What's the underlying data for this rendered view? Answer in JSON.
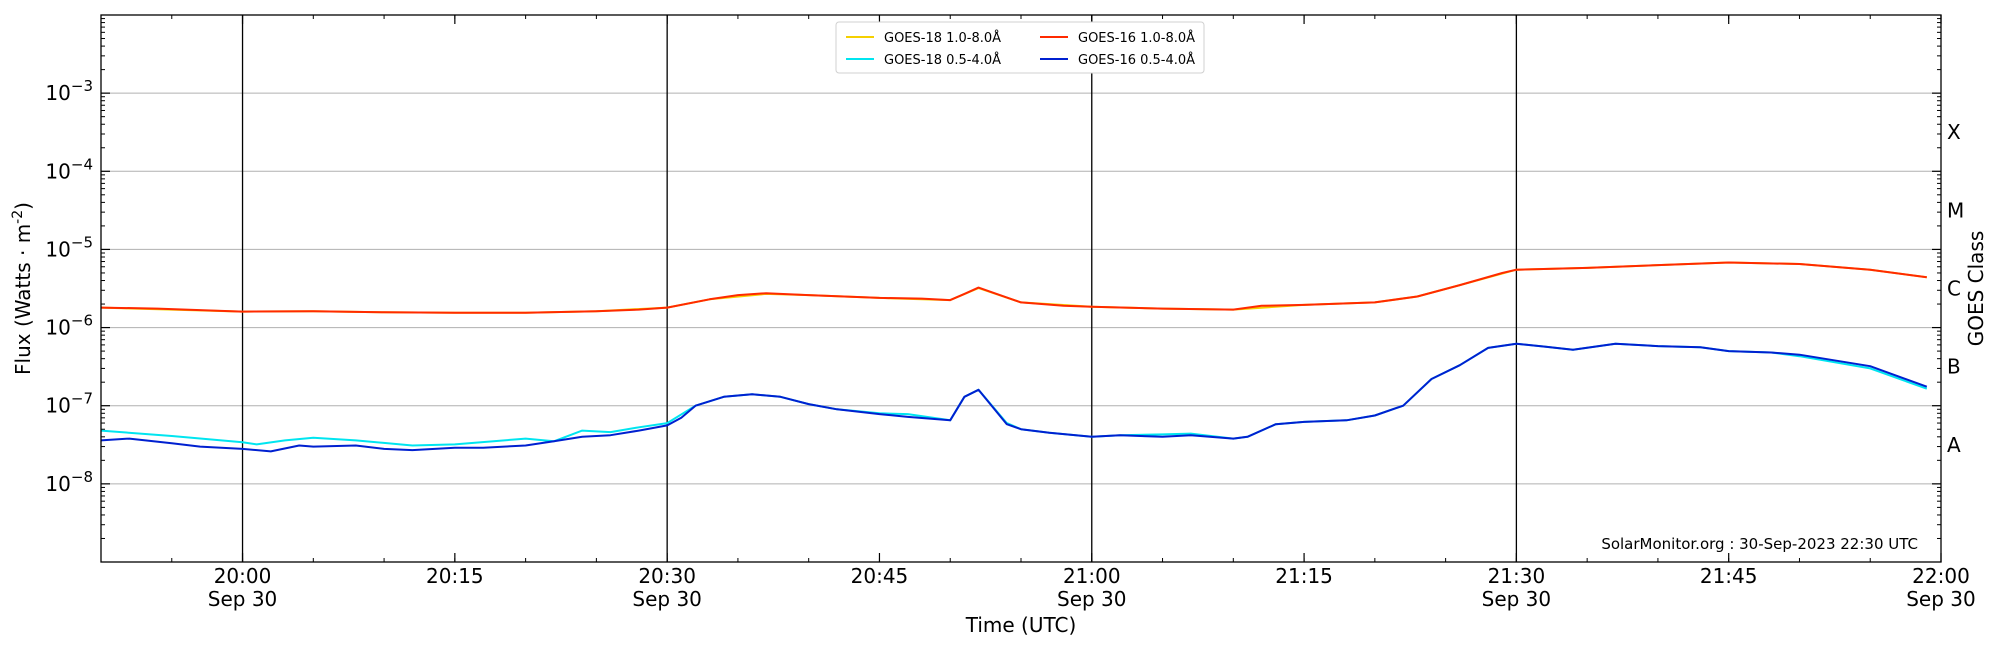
{
  "chart_data": {
    "type": "line",
    "xlabel": "Time (UTC)",
    "ylabel": "Flux (Watts · m",
    "ylabel_exp": "-2",
    "ylabel_close": ")",
    "right_label": "GOES Class",
    "credit": "SolarMonitor.org : 30-Sep-2023 22:30 UTC",
    "scale": "log",
    "ylim": [
      1e-09,
      0.01
    ],
    "xlim": [
      "19:50",
      "22:00"
    ],
    "grid": "horizontal at decades; vertical lines at half-hours",
    "legend_placement": "top-center",
    "yticks": [
      {
        "base": "10",
        "exp": "−8",
        "value": 1e-08
      },
      {
        "base": "10",
        "exp": "−7",
        "value": 1e-07
      },
      {
        "base": "10",
        "exp": "−6",
        "value": 1e-06
      },
      {
        "base": "10",
        "exp": "−5",
        "value": 1e-05
      },
      {
        "base": "10",
        "exp": "−4",
        "value": 0.0001
      },
      {
        "base": "10",
        "exp": "−3",
        "value": 0.001
      }
    ],
    "xticks": [
      {
        "time": "20:00",
        "line1": "20:00",
        "line2": "Sep 30"
      },
      {
        "time": "20:15",
        "line1": "20:15",
        "line2": ""
      },
      {
        "time": "20:30",
        "line1": "20:30",
        "line2": "Sep 30"
      },
      {
        "time": "20:45",
        "line1": "20:45",
        "line2": ""
      },
      {
        "time": "21:00",
        "line1": "21:00",
        "line2": "Sep 30"
      },
      {
        "time": "21:15",
        "line1": "21:15",
        "line2": ""
      },
      {
        "time": "21:30",
        "line1": "21:30",
        "line2": "Sep 30"
      },
      {
        "time": "21:45",
        "line1": "21:45",
        "line2": ""
      },
      {
        "time": "22:00",
        "line1": "22:00",
        "line2": "Sep 30"
      }
    ],
    "vertical_lines": [
      "20:00",
      "20:30",
      "21:00",
      "21:30"
    ],
    "goes_classes": [
      {
        "label": "A",
        "value": 3.16e-08
      },
      {
        "label": "B",
        "value": 3.16e-07
      },
      {
        "label": "C",
        "value": 3.16e-06
      },
      {
        "label": "M",
        "value": 3.16e-05
      },
      {
        "label": "X",
        "value": 0.000316
      }
    ],
    "series": [
      {
        "name": "GOES-18 1.0-8.0Å",
        "color": "#f5d000",
        "points": [
          [
            "19:50",
            1.8e-06
          ],
          [
            "20:00",
            1.6e-06
          ],
          [
            "20:05",
            1.62e-06
          ],
          [
            "20:10",
            1.57e-06
          ],
          [
            "20:15",
            1.55e-06
          ],
          [
            "20:20",
            1.55e-06
          ],
          [
            "20:25",
            1.62e-06
          ],
          [
            "20:30",
            1.8e-06
          ],
          [
            "20:33",
            2.3e-06
          ],
          [
            "20:37",
            2.7e-06
          ],
          [
            "20:40",
            2.6e-06
          ],
          [
            "20:45",
            2.4e-06
          ],
          [
            "20:50",
            2.25e-06
          ],
          [
            "20:52",
            3.2e-06
          ],
          [
            "20:55",
            2.1e-06
          ],
          [
            "21:00",
            1.85e-06
          ],
          [
            "21:05",
            1.75e-06
          ],
          [
            "21:10",
            1.7e-06
          ],
          [
            "21:15",
            1.95e-06
          ],
          [
            "21:20",
            2.1e-06
          ],
          [
            "21:23",
            2.5e-06
          ],
          [
            "21:26",
            3.5e-06
          ],
          [
            "21:30",
            5.5e-06
          ],
          [
            "21:35",
            5.8e-06
          ],
          [
            "21:40",
            6.3e-06
          ],
          [
            "21:45",
            6.8e-06
          ],
          [
            "21:50",
            6.5e-06
          ],
          [
            "21:55",
            5.5e-06
          ],
          [
            "21:59",
            4.4e-06
          ]
        ]
      },
      {
        "name": "GOES-16 1.0-8.0Å",
        "color": "#ff2a00",
        "points": [
          [
            "19:50",
            1.8e-06
          ],
          [
            "19:54",
            1.75e-06
          ],
          [
            "20:00",
            1.6e-06
          ],
          [
            "20:05",
            1.62e-06
          ],
          [
            "20:10",
            1.57e-06
          ],
          [
            "20:15",
            1.55e-06
          ],
          [
            "20:20",
            1.55e-06
          ],
          [
            "20:25",
            1.62e-06
          ],
          [
            "20:28",
            1.7e-06
          ],
          [
            "20:30",
            1.8e-06
          ],
          [
            "20:33",
            2.3e-06
          ],
          [
            "20:35",
            2.6e-06
          ],
          [
            "20:37",
            2.75e-06
          ],
          [
            "20:40",
            2.6e-06
          ],
          [
            "20:45",
            2.4e-06
          ],
          [
            "20:48",
            2.35e-06
          ],
          [
            "20:50",
            2.25e-06
          ],
          [
            "20:51",
            2.7e-06
          ],
          [
            "20:52",
            3.25e-06
          ],
          [
            "20:53",
            2.8e-06
          ],
          [
            "20:55",
            2.1e-06
          ],
          [
            "20:58",
            1.9e-06
          ],
          [
            "21:00",
            1.85e-06
          ],
          [
            "21:05",
            1.75e-06
          ],
          [
            "21:10",
            1.7e-06
          ],
          [
            "21:12",
            1.9e-06
          ],
          [
            "21:15",
            1.95e-06
          ],
          [
            "21:20",
            2.1e-06
          ],
          [
            "21:23",
            2.5e-06
          ],
          [
            "21:26",
            3.5e-06
          ],
          [
            "21:29",
            5e-06
          ],
          [
            "21:30",
            5.5e-06
          ],
          [
            "21:35",
            5.8e-06
          ],
          [
            "21:40",
            6.3e-06
          ],
          [
            "21:45",
            6.8e-06
          ],
          [
            "21:50",
            6.5e-06
          ],
          [
            "21:55",
            5.5e-06
          ],
          [
            "21:59",
            4.4e-06
          ]
        ]
      },
      {
        "name": "GOES-18 0.5-4.0Å",
        "color": "#00e5f0",
        "points": [
          [
            "19:50",
            4.8e-08
          ],
          [
            "19:55",
            4.1e-08
          ],
          [
            "20:00",
            3.4e-08
          ],
          [
            "20:01",
            3.2e-08
          ],
          [
            "20:03",
            3.6e-08
          ],
          [
            "20:05",
            3.9e-08
          ],
          [
            "20:08",
            3.6e-08
          ],
          [
            "20:12",
            3.1e-08
          ],
          [
            "20:15",
            3.2e-08
          ],
          [
            "20:20",
            3.8e-08
          ],
          [
            "20:22",
            3.5e-08
          ],
          [
            "20:24",
            4.8e-08
          ],
          [
            "20:26",
            4.6e-08
          ],
          [
            "20:28",
            5.3e-08
          ],
          [
            "20:30",
            6e-08
          ],
          [
            "20:32",
            1e-07
          ],
          [
            "20:34",
            1.3e-07
          ],
          [
            "20:36",
            1.4e-07
          ],
          [
            "20:38",
            1.3e-07
          ],
          [
            "20:40",
            1.05e-07
          ],
          [
            "20:42",
            9e-08
          ],
          [
            "20:45",
            8e-08
          ],
          [
            "20:47",
            7.8e-08
          ],
          [
            "20:50",
            6.5e-08
          ],
          [
            "20:51",
            1.3e-07
          ],
          [
            "20:52",
            1.6e-07
          ],
          [
            "20:54",
            6e-08
          ],
          [
            "20:55",
            5e-08
          ],
          [
            "20:57",
            4.5e-08
          ],
          [
            "21:00",
            4e-08
          ],
          [
            "21:02",
            4.2e-08
          ],
          [
            "21:05",
            4.3e-08
          ],
          [
            "21:07",
            4.4e-08
          ],
          [
            "21:10",
            3.8e-08
          ],
          [
            "21:11",
            4e-08
          ],
          [
            "21:13",
            5.8e-08
          ],
          [
            "21:15",
            6.2e-08
          ],
          [
            "21:18",
            6.5e-08
          ],
          [
            "21:20",
            7.5e-08
          ],
          [
            "21:22",
            1e-07
          ],
          [
            "21:24",
            2.2e-07
          ],
          [
            "21:26",
            3.3e-07
          ],
          [
            "21:28",
            5.5e-07
          ],
          [
            "21:30",
            6.2e-07
          ],
          [
            "21:32",
            5.7e-07
          ],
          [
            "21:34",
            5.2e-07
          ],
          [
            "21:37",
            6.2e-07
          ],
          [
            "21:40",
            5.8e-07
          ],
          [
            "21:43",
            5.6e-07
          ],
          [
            "21:45",
            5e-07
          ],
          [
            "21:48",
            4.8e-07
          ],
          [
            "21:50",
            4.3e-07
          ],
          [
            "21:55",
            3e-07
          ],
          [
            "21:59",
            1.65e-07
          ]
        ]
      },
      {
        "name": "GOES-16 0.5-4.0Å",
        "color": "#0020d0",
        "points": [
          [
            "19:50",
            3.6e-08
          ],
          [
            "19:52",
            3.8e-08
          ],
          [
            "19:55",
            3.3e-08
          ],
          [
            "19:57",
            3e-08
          ],
          [
            "20:00",
            2.8e-08
          ],
          [
            "20:02",
            2.6e-08
          ],
          [
            "20:04",
            3.1e-08
          ],
          [
            "20:05",
            3e-08
          ],
          [
            "20:08",
            3.1e-08
          ],
          [
            "20:10",
            2.8e-08
          ],
          [
            "20:12",
            2.7e-08
          ],
          [
            "20:15",
            2.9e-08
          ],
          [
            "20:17",
            2.9e-08
          ],
          [
            "20:20",
            3.1e-08
          ],
          [
            "20:22",
            3.5e-08
          ],
          [
            "20:24",
            4e-08
          ],
          [
            "20:26",
            4.2e-08
          ],
          [
            "20:28",
            4.8e-08
          ],
          [
            "20:30",
            5.6e-08
          ],
          [
            "20:31",
            7e-08
          ],
          [
            "20:32",
            1e-07
          ],
          [
            "20:34",
            1.3e-07
          ],
          [
            "20:36",
            1.4e-07
          ],
          [
            "20:38",
            1.3e-07
          ],
          [
            "20:40",
            1.05e-07
          ],
          [
            "20:42",
            9e-08
          ],
          [
            "20:45",
            7.8e-08
          ],
          [
            "20:47",
            7.2e-08
          ],
          [
            "20:50",
            6.5e-08
          ],
          [
            "20:51",
            1.3e-07
          ],
          [
            "20:52",
            1.6e-07
          ],
          [
            "20:54",
            5.8e-08
          ],
          [
            "20:55",
            5e-08
          ],
          [
            "20:57",
            4.5e-08
          ],
          [
            "21:00",
            4e-08
          ],
          [
            "21:02",
            4.2e-08
          ],
          [
            "21:05",
            4e-08
          ],
          [
            "21:07",
            4.2e-08
          ],
          [
            "21:10",
            3.8e-08
          ],
          [
            "21:11",
            4e-08
          ],
          [
            "21:13",
            5.8e-08
          ],
          [
            "21:15",
            6.2e-08
          ],
          [
            "21:18",
            6.5e-08
          ],
          [
            "21:20",
            7.5e-08
          ],
          [
            "21:22",
            1e-07
          ],
          [
            "21:24",
            2.2e-07
          ],
          [
            "21:26",
            3.3e-07
          ],
          [
            "21:28",
            5.5e-07
          ],
          [
            "21:30",
            6.2e-07
          ],
          [
            "21:32",
            5.7e-07
          ],
          [
            "21:34",
            5.2e-07
          ],
          [
            "21:37",
            6.2e-07
          ],
          [
            "21:40",
            5.8e-07
          ],
          [
            "21:43",
            5.6e-07
          ],
          [
            "21:45",
            5e-07
          ],
          [
            "21:48",
            4.8e-07
          ],
          [
            "21:50",
            4.5e-07
          ],
          [
            "21:55",
            3.2e-07
          ],
          [
            "21:59",
            1.75e-07
          ]
        ]
      }
    ],
    "legend_order": [
      0,
      2,
      1,
      3
    ]
  }
}
